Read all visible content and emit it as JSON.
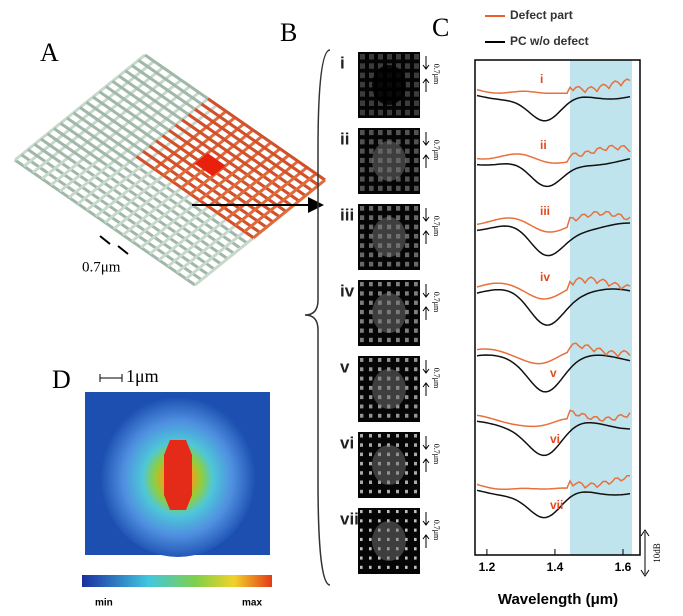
{
  "panel_a": {
    "label": "A",
    "scale": "0.7μm"
  },
  "panel_b": {
    "label": "B",
    "modes": [
      {
        "label": "i",
        "scale": "0.7μm"
      },
      {
        "label": "ii",
        "scale": "0.7μm"
      },
      {
        "label": "iii",
        "scale": "0.7μm"
      },
      {
        "label": "iv",
        "scale": "0.7μm"
      },
      {
        "label": "v",
        "scale": "0.7μm"
      },
      {
        "label": "vi",
        "scale": "0.7μm"
      },
      {
        "label": "vii",
        "scale": "0.7μm"
      }
    ]
  },
  "panel_c": {
    "label": "C",
    "legend": [
      "Defect part",
      "PC w/o defect"
    ],
    "mode_labels": [
      "i",
      "ii",
      "iii",
      "iv",
      "v",
      "vi",
      "vii"
    ],
    "xlim": [
      1.165,
      1.65
    ],
    "xticks": [
      1.2,
      1.4,
      1.6
    ],
    "xlabel": "Wavelength (μm)",
    "scalebar": "10dB"
  },
  "panel_d": {
    "label": "D",
    "scale": "1μm",
    "colorbar": [
      "min",
      "max"
    ]
  }
}
